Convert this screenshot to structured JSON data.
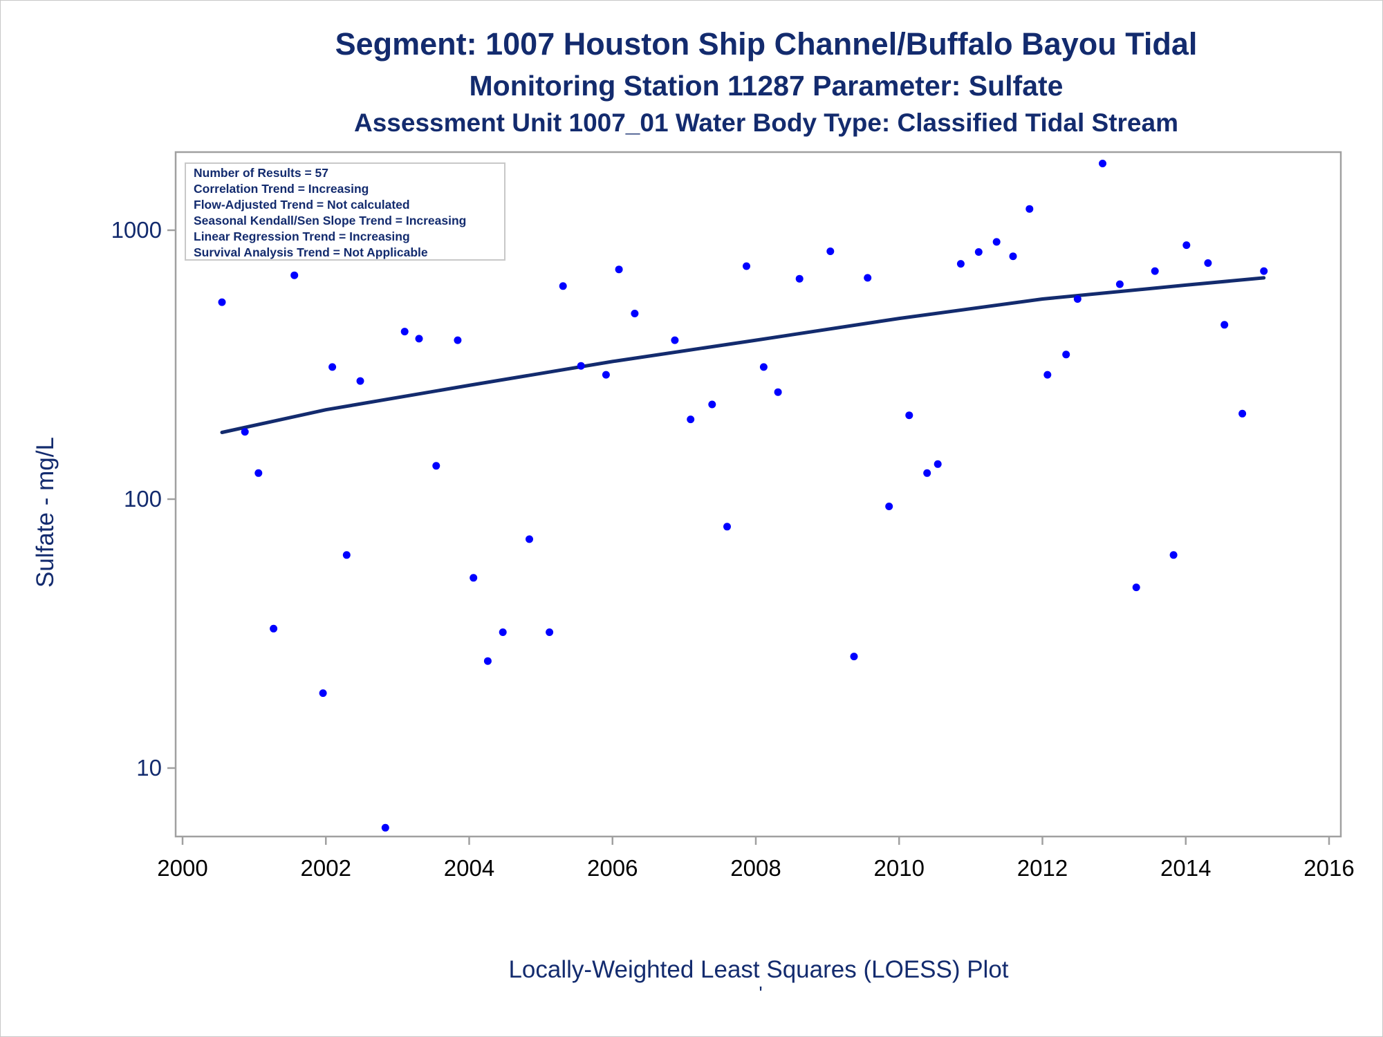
{
  "titles": {
    "line1": "Segment: 1007  Houston Ship Channel/Buffalo Bayou Tidal",
    "line2": "Monitoring Station 11287 Parameter: Sulfate",
    "line3": "Assessment Unit 1007_01   Water Body Type: Classified Tidal Stream"
  },
  "footnote": "Locally-Weighted Least Squares (LOESS) Plot",
  "footnote_mark": "'",
  "inset": {
    "lines": [
      "Number of Results = 57",
      "Correlation Trend = Increasing",
      "Flow-Adjusted Trend = Not calculated",
      "Seasonal Kendall/Sen Slope Trend = Increasing",
      "Linear Regression Trend = Increasing",
      "Survival Analysis Trend = Not Applicable"
    ]
  },
  "colors": {
    "points": "#0000ff",
    "trend_line": "#132b6e",
    "text": "#132b6e",
    "axis": "#a0a0a0"
  },
  "chart_data": {
    "type": "scatter",
    "x_axis": {
      "label": "",
      "range": [
        2000,
        2016
      ],
      "ticks": [
        2000,
        2002,
        2004,
        2006,
        2008,
        2010,
        2012,
        2014,
        2016
      ]
    },
    "y_axis": {
      "label": "Sulfate - mg/L",
      "scale": "log",
      "range": [
        5.7,
        1800
      ],
      "ticks": [
        10,
        100,
        1000
      ]
    },
    "grid": false,
    "points": [
      [
        2000.55,
        540
      ],
      [
        2000.87,
        178
      ],
      [
        2001.06,
        125
      ],
      [
        2001.27,
        33
      ],
      [
        2001.56,
        680
      ],
      [
        2001.96,
        19
      ],
      [
        2002.09,
        310
      ],
      [
        2002.29,
        62
      ],
      [
        2002.48,
        275
      ],
      [
        2002.83,
        6
      ],
      [
        2003.1,
        420
      ],
      [
        2003.3,
        395
      ],
      [
        2003.54,
        133
      ],
      [
        2003.84,
        390
      ],
      [
        2004.06,
        51
      ],
      [
        2004.26,
        25
      ],
      [
        2004.47,
        32
      ],
      [
        2004.84,
        71
      ],
      [
        2005.12,
        32
      ],
      [
        2005.31,
        620
      ],
      [
        2005.56,
        313
      ],
      [
        2005.91,
        290
      ],
      [
        2006.09,
        715
      ],
      [
        2006.31,
        490
      ],
      [
        2006.87,
        390
      ],
      [
        2007.09,
        198
      ],
      [
        2007.39,
        225
      ],
      [
        2007.6,
        79
      ],
      [
        2007.87,
        735
      ],
      [
        2008.11,
        310
      ],
      [
        2008.31,
        250
      ],
      [
        2008.61,
        660
      ],
      [
        2009.04,
        835
      ],
      [
        2009.37,
        26
      ],
      [
        2009.56,
        665
      ],
      [
        2009.86,
        94
      ],
      [
        2010.14,
        205
      ],
      [
        2010.39,
        125
      ],
      [
        2010.54,
        135
      ],
      [
        2010.86,
        750
      ],
      [
        2011.11,
        830
      ],
      [
        2011.36,
        905
      ],
      [
        2011.59,
        800
      ],
      [
        2011.82,
        1200
      ],
      [
        2012.07,
        290
      ],
      [
        2012.33,
        345
      ],
      [
        2012.49,
        555
      ],
      [
        2012.84,
        1770
      ],
      [
        2013.08,
        630
      ],
      [
        2013.31,
        47
      ],
      [
        2013.57,
        705
      ],
      [
        2013.83,
        62
      ],
      [
        2014.01,
        880
      ],
      [
        2014.31,
        755
      ],
      [
        2014.54,
        445
      ],
      [
        2014.79,
        208
      ],
      [
        2015.09,
        705
      ]
    ],
    "trend": [
      [
        2000.55,
        177
      ],
      [
        2002.0,
        215
      ],
      [
        2004.0,
        265
      ],
      [
        2006.0,
        325
      ],
      [
        2008.0,
        390
      ],
      [
        2010.0,
        470
      ],
      [
        2012.0,
        555
      ],
      [
        2014.0,
        625
      ],
      [
        2015.09,
        665
      ]
    ]
  }
}
